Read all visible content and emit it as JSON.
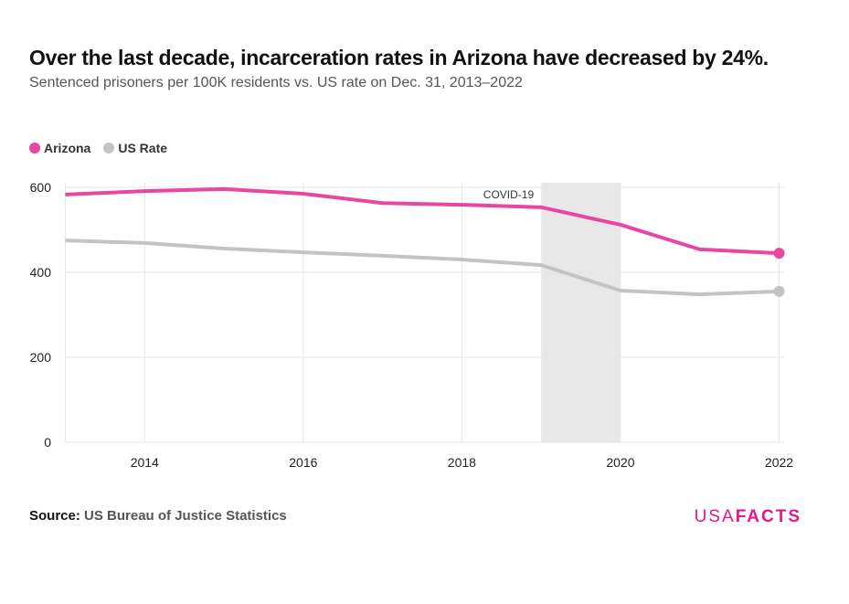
{
  "title": "Over the last decade, incarceration rates in Arizona have decreased by 24%.",
  "subtitle": "Sentenced prisoners per 100K residents vs. US rate on Dec. 31, 2013–2022",
  "source_label": "Source:",
  "source_text": "US Bureau of Justice Statistics",
  "logo": {
    "part1": "USA",
    "part2": "FACTS"
  },
  "chart_data": {
    "type": "line",
    "x": [
      2013,
      2014,
      2015,
      2016,
      2017,
      2018,
      2019,
      2020,
      2021,
      2022
    ],
    "xlim": [
      2013,
      2022
    ],
    "ylim": [
      0,
      610
    ],
    "xticks": [
      "2014",
      "2016",
      "2018",
      "2020",
      "2022"
    ],
    "yticks": [
      "0",
      "200",
      "400",
      "600"
    ],
    "grid": true,
    "legend_position": "top-left",
    "series": [
      {
        "name": "Arizona",
        "color": "#e8479f",
        "values": [
          583,
          591,
          596,
          585,
          563,
          559,
          553,
          512,
          454,
          445
        ]
      },
      {
        "name": "US Rate",
        "color": "#c3c3c3",
        "values": [
          475,
          469,
          456,
          447,
          439,
          430,
          417,
          357,
          348,
          355
        ]
      }
    ],
    "annotation": {
      "label": "COVID-19",
      "x_start": 2019,
      "x_end": 2020,
      "color": "#e8e8e8"
    }
  }
}
